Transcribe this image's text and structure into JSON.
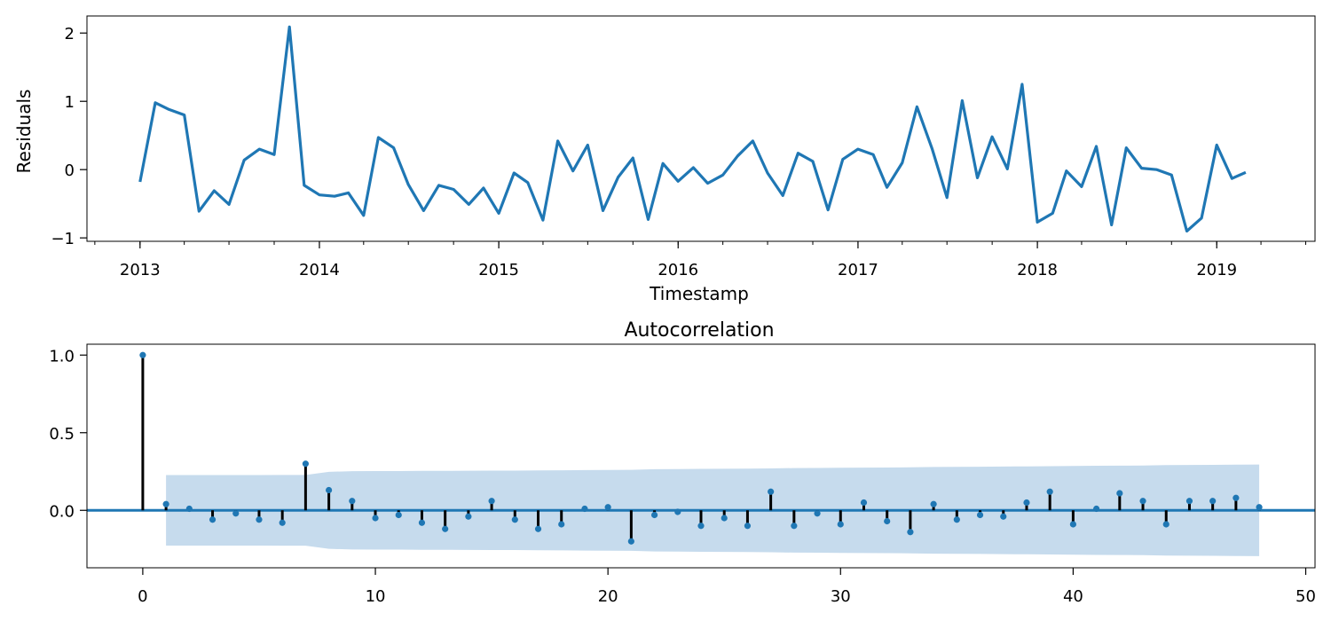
{
  "chart_data": [
    {
      "type": "line",
      "xlabel": "Timestamp",
      "ylabel": "Residuals",
      "title": "",
      "grid": false,
      "xlim": [
        "2012-09-15",
        "2019-07-20"
      ],
      "ylim": [
        -1.05,
        2.25
      ],
      "x_ticks": [
        "2013-01-01",
        "2014-01-01",
        "2015-01-01",
        "2016-01-01",
        "2017-01-01",
        "2018-01-01",
        "2019-01-01"
      ],
      "x_tick_labels": [
        "2013",
        "2014",
        "2015",
        "2016",
        "2017",
        "2018",
        "2019"
      ],
      "y_ticks": [
        -1,
        0,
        1,
        2
      ],
      "y_tick_labels": [
        "−1",
        "0",
        "1",
        "2"
      ],
      "series": [
        {
          "color": "#1f77b4",
          "x": [
            "2013-01-01",
            "2013-02-01",
            "2013-03-01",
            "2013-04-01",
            "2013-05-01",
            "2013-06-01",
            "2013-07-01",
            "2013-08-01",
            "2013-09-01",
            "2013-10-01",
            "2013-11-01",
            "2013-12-01",
            "2014-01-01",
            "2014-02-01",
            "2014-03-01",
            "2014-04-01",
            "2014-05-01",
            "2014-06-01",
            "2014-07-01",
            "2014-08-01",
            "2014-09-01",
            "2014-10-01",
            "2014-11-01",
            "2014-12-01",
            "2015-01-01",
            "2015-02-01",
            "2015-03-01",
            "2015-04-01",
            "2015-05-01",
            "2015-06-01",
            "2015-07-01",
            "2015-08-01",
            "2015-09-01",
            "2015-10-01",
            "2015-11-01",
            "2015-12-01",
            "2016-01-01",
            "2016-02-01",
            "2016-03-01",
            "2016-04-01",
            "2016-05-01",
            "2016-06-01",
            "2016-07-01",
            "2016-08-01",
            "2016-09-01",
            "2016-10-01",
            "2016-11-01",
            "2016-12-01",
            "2017-01-01",
            "2017-02-01",
            "2017-03-01",
            "2017-04-01",
            "2017-05-01",
            "2017-06-01",
            "2017-07-01",
            "2017-08-01",
            "2017-09-01",
            "2017-10-01",
            "2017-11-01",
            "2017-12-01",
            "2018-01-01",
            "2018-02-01",
            "2018-03-01",
            "2018-04-01",
            "2018-05-01",
            "2018-06-01",
            "2018-07-01",
            "2018-08-01",
            "2018-09-01",
            "2018-10-01",
            "2018-11-01",
            "2018-12-01",
            "2019-01-01",
            "2019-02-01",
            "2019-03-01"
          ],
          "y": [
            -0.18,
            0.98,
            0.88,
            0.8,
            -0.61,
            -0.31,
            -0.51,
            0.14,
            0.3,
            0.22,
            2.09,
            -0.23,
            -0.37,
            -0.39,
            -0.34,
            -0.67,
            0.47,
            0.32,
            -0.22,
            -0.6,
            -0.23,
            -0.29,
            -0.51,
            -0.27,
            -0.64,
            -0.05,
            -0.19,
            -0.74,
            0.42,
            -0.02,
            0.36,
            -0.6,
            -0.11,
            0.17,
            -0.73,
            0.09,
            -0.17,
            0.03,
            -0.2,
            -0.08,
            0.2,
            0.42,
            -0.05,
            -0.38,
            0.24,
            0.12,
            -0.59,
            0.15,
            0.3,
            0.22,
            -0.26,
            0.1,
            0.92,
            0.3,
            -0.41,
            1.01,
            -0.12,
            0.48,
            0.01,
            1.25,
            -0.77,
            -0.64,
            -0.02,
            -0.25,
            0.34,
            -0.81,
            0.32,
            0.02,
            0.0,
            -0.08,
            -0.9,
            -0.71,
            0.36,
            -0.13,
            -0.04
          ]
        }
      ]
    },
    {
      "type": "stem",
      "title": "Autocorrelation",
      "xlabel": "",
      "ylabel": "",
      "grid": false,
      "xlim": [
        -2.4,
        50.4
      ],
      "ylim": [
        -0.37,
        1.07
      ],
      "x_ticks": [
        0,
        10,
        20,
        30,
        40,
        50
      ],
      "x_tick_labels": [
        "0",
        "10",
        "20",
        "30",
        "40",
        "50"
      ],
      "y_ticks": [
        0.0,
        0.5,
        1.0
      ],
      "y_tick_labels": [
        "0.0",
        "0.5",
        "1.0"
      ],
      "marker_color": "#1f77b4",
      "stem_color": "#000000",
      "zero_line_color": "#1f77b4",
      "band_color": "#c6dbed",
      "lags": [
        0,
        1,
        2,
        3,
        4,
        5,
        6,
        7,
        8,
        9,
        10,
        11,
        12,
        13,
        14,
        15,
        16,
        17,
        18,
        19,
        20,
        21,
        22,
        23,
        24,
        25,
        26,
        27,
        28,
        29,
        30,
        31,
        32,
        33,
        34,
        35,
        36,
        37,
        38,
        39,
        40,
        41,
        42,
        43,
        44,
        45,
        46,
        47,
        48
      ],
      "acf": [
        1.0,
        0.04,
        0.01,
        -0.06,
        -0.02,
        -0.06,
        -0.08,
        0.3,
        0.13,
        0.06,
        -0.05,
        -0.03,
        -0.08,
        -0.12,
        -0.04,
        0.06,
        -0.06,
        -0.12,
        -0.09,
        0.01,
        0.02,
        -0.2,
        -0.03,
        -0.01,
        -0.1,
        -0.05,
        -0.1,
        0.12,
        -0.1,
        -0.02,
        -0.09,
        0.05,
        -0.07,
        -0.14,
        0.04,
        -0.06,
        -0.03,
        -0.04,
        0.05,
        0.12,
        -0.09,
        0.01,
        0.11,
        0.06,
        -0.09,
        0.06,
        0.06,
        0.08,
        0.02
      ],
      "confint_lags": [
        1,
        2,
        3,
        4,
        5,
        6,
        7,
        8,
        9,
        10,
        11,
        12,
        13,
        14,
        15,
        16,
        17,
        18,
        19,
        20,
        21,
        22,
        23,
        24,
        25,
        26,
        27,
        28,
        29,
        30,
        31,
        32,
        33,
        34,
        35,
        36,
        37,
        38,
        39,
        40,
        41,
        42,
        43,
        44,
        45,
        46,
        47,
        48
      ],
      "confint_half_width": [
        0.227,
        0.227,
        0.227,
        0.227,
        0.227,
        0.228,
        0.228,
        0.248,
        0.252,
        0.253,
        0.253,
        0.254,
        0.254,
        0.255,
        0.256,
        0.256,
        0.257,
        0.258,
        0.259,
        0.26,
        0.261,
        0.265,
        0.266,
        0.267,
        0.268,
        0.269,
        0.27,
        0.272,
        0.273,
        0.274,
        0.275,
        0.276,
        0.277,
        0.279,
        0.28,
        0.281,
        0.282,
        0.283,
        0.284,
        0.286,
        0.287,
        0.288,
        0.289,
        0.291,
        0.292,
        0.293,
        0.294,
        0.295
      ]
    }
  ]
}
